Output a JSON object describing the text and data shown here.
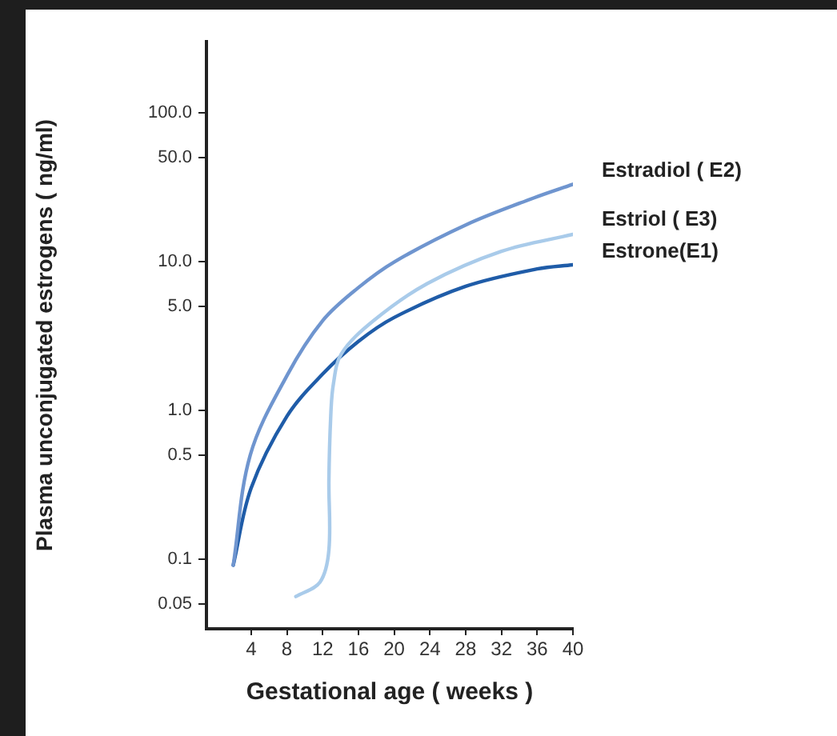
{
  "chart_data": {
    "type": "line",
    "xlabel": "Gestational age ( weeks )",
    "ylabel": "Plasma unconjugated estrogens ( ng/ml)",
    "log": "y",
    "xlim": [
      -1,
      40
    ],
    "xticks": [
      4,
      8,
      12,
      16,
      20,
      24,
      28,
      32,
      36,
      40
    ],
    "ylim": [
      0.034,
      300
    ],
    "yticks": [
      {
        "value": 100,
        "label": "100.0"
      },
      {
        "value": 50,
        "label": "50.0"
      },
      {
        "value": 10,
        "label": "10.0"
      },
      {
        "value": 5,
        "label": "5.0"
      },
      {
        "value": 1,
        "label": "1.0"
      },
      0.5,
      0.1,
      0.05
    ],
    "grid": false,
    "legend": false,
    "marker": "none",
    "line_style": "solid",
    "series": [
      {
        "name": "Estradiol ( E2)",
        "color": "#6f95cf",
        "x": [
          2,
          3.9,
          8.1,
          12,
          15.9,
          20.1,
          28.1,
          35.6,
          40
        ],
        "values": [
          0.091,
          0.5,
          1.75,
          4.0,
          6.6,
          10,
          17.7,
          26.7,
          33
        ]
      },
      {
        "name": "Estriol ( E3)",
        "color": "#a9cbea",
        "x": [
          9,
          11.7,
          12.7,
          12.7,
          12.9,
          13.2,
          14.1,
          17.7,
          23.7,
          32,
          40
        ],
        "values": [
          0.056,
          0.07,
          0.115,
          0.34,
          0.9,
          1.5,
          2.4,
          4.0,
          7.1,
          11.7,
          15.2
        ]
      },
      {
        "name": "Estrone(E1)",
        "color": "#1f5ca8",
        "x": [
          2,
          4,
          8,
          12,
          16,
          20,
          28,
          36,
          40
        ],
        "values": [
          0.091,
          0.3,
          0.91,
          1.75,
          2.9,
          4.2,
          6.8,
          8.9,
          9.5
        ]
      }
    ]
  }
}
